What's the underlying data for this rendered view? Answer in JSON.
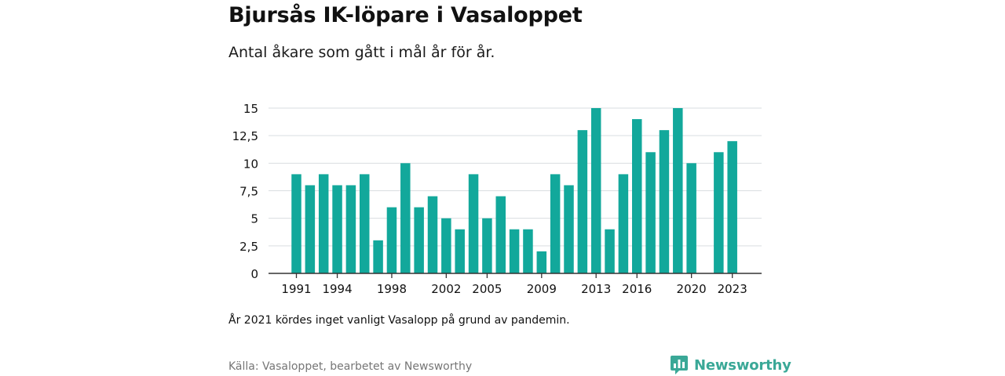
{
  "header": {
    "title": "Bjursås IK-löpare i Vasaloppet",
    "subtitle": "Antal åkare som gått i mål år för år."
  },
  "footer": {
    "note": "År 2021 kördes inget vanligt Vasalopp på grund av pandemin.",
    "source": "Källa: Vasaloppet, bearbetet av Newsworthy",
    "brand": "Newsworthy",
    "brand_icon": "newsworthy-logo-icon"
  },
  "colors": {
    "bar": "#12a89b",
    "grid": "#d9dde0",
    "axis": "#333333",
    "brand": "#3aa897"
  },
  "chart_data": {
    "type": "bar",
    "title": "Bjursås IK-löpare i Vasaloppet",
    "subtitle": "Antal åkare som gått i mål år för år.",
    "xlabel": "",
    "ylabel": "",
    "ylim": [
      0,
      15
    ],
    "grid": true,
    "yticks": [
      0,
      2.5,
      5,
      7.5,
      10,
      12.5,
      15
    ],
    "ytick_labels": [
      "0",
      "2,5",
      "5",
      "7,5",
      "10",
      "12,5",
      "15"
    ],
    "xtick_labels": [
      "1991",
      "1994",
      "1998",
      "2002",
      "2005",
      "2009",
      "2013",
      "2016",
      "2020",
      "2023"
    ],
    "categories": [
      1991,
      1992,
      1993,
      1994,
      1995,
      1996,
      1997,
      1998,
      1999,
      2000,
      2001,
      2002,
      2003,
      2004,
      2005,
      2006,
      2007,
      2008,
      2009,
      2010,
      2011,
      2012,
      2013,
      2014,
      2015,
      2016,
      2017,
      2018,
      2019,
      2020,
      2021,
      2022,
      2023
    ],
    "values": [
      9,
      8,
      9,
      8,
      8,
      9,
      3,
      6,
      10,
      6,
      7,
      5,
      4,
      9,
      5,
      7,
      4,
      4,
      2,
      9,
      8,
      13,
      15,
      4,
      9,
      14,
      11,
      13,
      15,
      10,
      null,
      11,
      12
    ]
  }
}
